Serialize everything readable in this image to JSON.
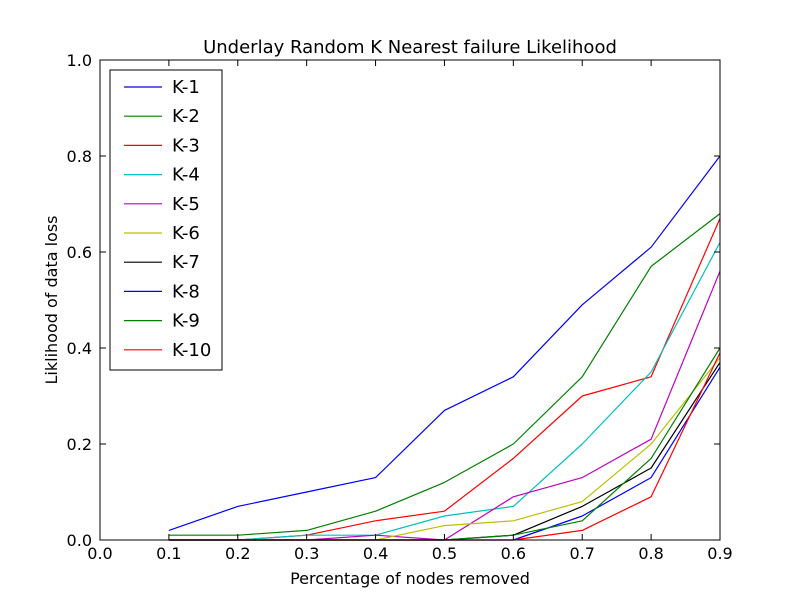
{
  "chart_data": {
    "type": "line",
    "title": "Underlay Random K Nearest failure Likelihood",
    "xlabel": "Percentage of nodes removed",
    "ylabel": "Liklihood of data loss",
    "xlim": [
      0.0,
      0.9
    ],
    "ylim": [
      0.0,
      1.0
    ],
    "x_ticks": [
      "0.0",
      "0.1",
      "0.2",
      "0.3",
      "0.4",
      "0.5",
      "0.6",
      "0.7",
      "0.8",
      "0.9"
    ],
    "y_ticks": [
      "0.0",
      "0.2",
      "0.4",
      "0.6",
      "0.8",
      "1.0"
    ],
    "grid": false,
    "legend_position": "top-left",
    "x": [
      0.1,
      0.2,
      0.3,
      0.4,
      0.5,
      0.6,
      0.7,
      0.8,
      0.9
    ],
    "series": [
      {
        "name": "K-1",
        "color": "#0000ff",
        "values": [
          0.02,
          0.07,
          0.1,
          0.13,
          0.27,
          0.34,
          0.49,
          0.61,
          0.8
        ]
      },
      {
        "name": "K-2",
        "color": "#008000",
        "values": [
          0.01,
          0.01,
          0.02,
          0.06,
          0.12,
          0.2,
          0.34,
          0.57,
          0.68
        ]
      },
      {
        "name": "K-3",
        "color": "#ff0000",
        "values": [
          0.0,
          0.0,
          0.01,
          0.04,
          0.06,
          0.17,
          0.3,
          0.34,
          0.67
        ]
      },
      {
        "name": "K-4",
        "color": "#00bfbf",
        "values": [
          0.0,
          0.0,
          0.01,
          0.01,
          0.05,
          0.07,
          0.2,
          0.35,
          0.62
        ]
      },
      {
        "name": "K-5",
        "color": "#bf00bf",
        "values": [
          0.0,
          0.0,
          0.0,
          0.01,
          0.0,
          0.09,
          0.13,
          0.21,
          0.56
        ]
      },
      {
        "name": "K-6",
        "color": "#bfbf00",
        "values": [
          0.0,
          0.0,
          0.0,
          0.0,
          0.03,
          0.04,
          0.08,
          0.2,
          0.38
        ]
      },
      {
        "name": "K-7",
        "color": "#000000",
        "values": [
          0.0,
          0.0,
          0.0,
          0.0,
          0.0,
          0.01,
          0.07,
          0.15,
          0.37
        ]
      },
      {
        "name": "K-8",
        "color": "#0000ff",
        "values": [
          0.0,
          0.0,
          0.0,
          0.0,
          0.0,
          0.0,
          0.05,
          0.13,
          0.36
        ]
      },
      {
        "name": "K-9",
        "color": "#008000",
        "values": [
          0.0,
          0.0,
          0.0,
          0.0,
          0.0,
          0.01,
          0.04,
          0.17,
          0.4
        ]
      },
      {
        "name": "K-10",
        "color": "#ff0000",
        "values": [
          0.0,
          0.0,
          0.0,
          0.0,
          0.0,
          0.0,
          0.02,
          0.09,
          0.39
        ]
      }
    ]
  }
}
